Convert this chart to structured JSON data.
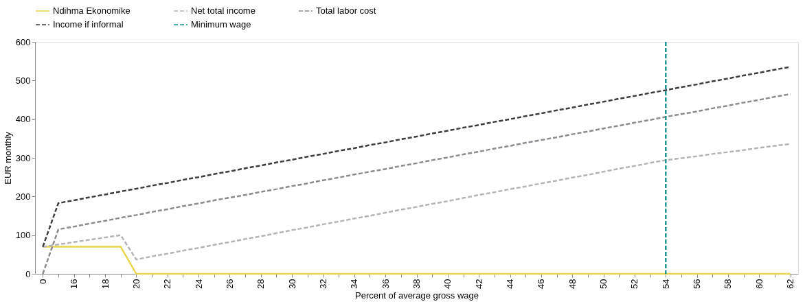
{
  "chart_data": {
    "type": "line",
    "xlabel": "Percent of average gross wage",
    "ylabel": "EUR monthly",
    "categories": [
      "0",
      null,
      "16",
      null,
      "18",
      null,
      "20",
      null,
      "22",
      null,
      "24",
      null,
      "26",
      null,
      "28",
      null,
      "30",
      null,
      "32",
      null,
      "34",
      null,
      "36",
      null,
      "38",
      null,
      "40",
      null,
      "42",
      null,
      "44",
      null,
      "46",
      null,
      "48",
      null,
      "50",
      null,
      "52",
      null,
      "54",
      null,
      "56",
      null,
      "58",
      null,
      "60",
      null,
      "62"
    ],
    "series": [
      {
        "name": "Ndihma Ekonomike",
        "color": "#e8d44d",
        "line_style": "solid",
        "values": [
          70,
          70,
          70,
          70,
          70,
          70,
          0,
          0,
          0,
          0,
          0,
          0,
          0,
          0,
          0,
          0,
          0,
          0,
          0,
          0,
          0,
          0,
          0,
          0,
          0,
          0,
          0,
          0,
          0,
          0,
          0,
          0,
          0,
          0,
          0,
          0,
          0,
          0,
          0,
          0,
          0,
          0,
          0,
          0,
          0,
          0,
          0,
          0,
          0
        ]
      },
      {
        "name": "Net total income",
        "color": "#b4b4b8",
        "line_style": "dashed",
        "values": [
          70,
          76,
          82,
          88,
          94,
          100,
          37,
          45,
          52,
          60,
          67,
          75,
          82,
          90,
          97,
          105,
          113,
          120,
          128,
          135,
          143,
          150,
          158,
          166,
          173,
          181,
          188,
          196,
          204,
          211,
          219,
          226,
          234,
          241,
          249,
          256,
          264,
          272,
          279,
          287,
          294,
          299,
          304,
          310,
          315,
          320,
          326,
          331,
          336
        ]
      },
      {
        "name": "Total labor cost",
        "color": "#8a8a90",
        "line_style": "dashed",
        "values": [
          0,
          115,
          122,
          130,
          137,
          145,
          152,
          160,
          167,
          175,
          182,
          190,
          197,
          204,
          212,
          219,
          227,
          234,
          242,
          249,
          257,
          264,
          271,
          279,
          286,
          294,
          301,
          309,
          316,
          324,
          331,
          339,
          346,
          353,
          361,
          368,
          376,
          383,
          391,
          398,
          406,
          413,
          420,
          428,
          435,
          443,
          450,
          458,
          465
        ]
      },
      {
        "name": "Income if informal",
        "color": "#3c3c40",
        "line_style": "dashed",
        "values": [
          70,
          183,
          190,
          198,
          205,
          213,
          220,
          228,
          235,
          243,
          250,
          258,
          265,
          273,
          280,
          288,
          295,
          303,
          310,
          318,
          325,
          333,
          340,
          348,
          355,
          363,
          370,
          378,
          385,
          393,
          400,
          408,
          415,
          423,
          430,
          438,
          445,
          453,
          460,
          468,
          475,
          483,
          490,
          498,
          505,
          513,
          520,
          528,
          535
        ]
      }
    ],
    "ref_lines": [
      {
        "axis": "x",
        "value": "54",
        "label": "Minimum wage",
        "color": "#1a9690",
        "line_style": "dashed"
      }
    ],
    "ylim": [
      0,
      600
    ],
    "yticks": [
      0,
      100,
      200,
      300,
      400,
      500,
      600
    ],
    "grid": false,
    "legend": "top"
  }
}
